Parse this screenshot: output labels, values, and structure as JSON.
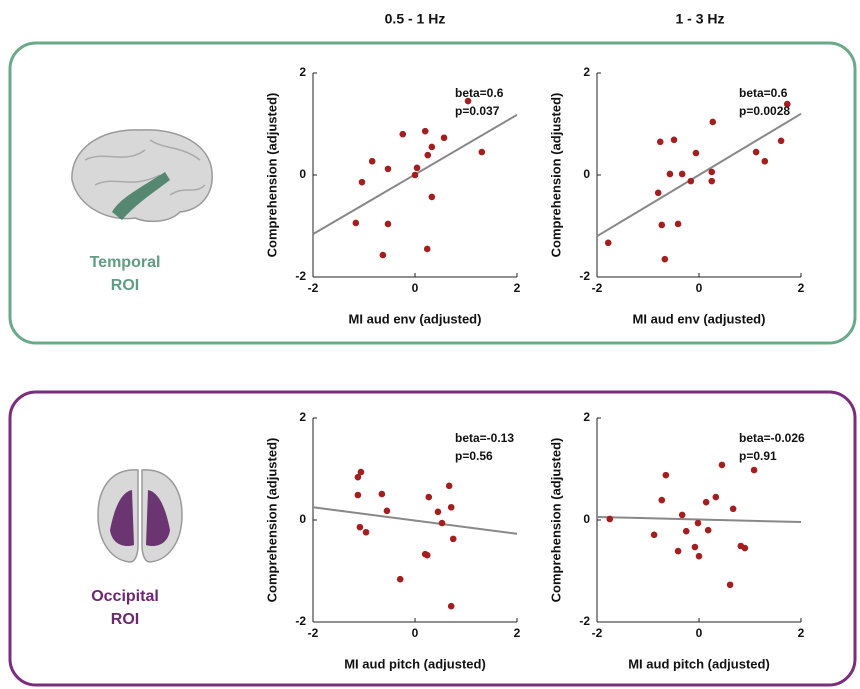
{
  "columns": [
    "0.5 - 1 Hz",
    "1 - 3 Hz"
  ],
  "rows": [
    [
      "Temporal",
      "ROI"
    ],
    [
      "Occipital",
      "ROI"
    ]
  ],
  "chart_data": [
    {
      "type": "scatter",
      "xlabel": "MI aud env (adjusted)",
      "ylabel": "Comprehension (adjusted)",
      "x": [
        -1.16,
        -1.04,
        -0.84,
        -0.63,
        -0.53,
        -0.53,
        -0.24,
        0,
        0.04,
        0.2,
        0.24,
        0.25,
        0.33,
        0.33,
        0.57,
        1.04,
        1.31
      ],
      "values": [
        -0.94,
        -0.14,
        0.27,
        -1.57,
        -0.96,
        0.12,
        0.8,
        0,
        0.14,
        0.86,
        -1.45,
        0.39,
        0.55,
        -0.43,
        0.73,
        1.45,
        0.45
      ],
      "color": "#a31f1f",
      "fit": {
        "x": [
          -2,
          2
        ],
        "y": [
          -1.16,
          1.18
        ],
        "color": "#888888"
      },
      "annotations": [
        "beta=0.6",
        "p=0.037"
      ],
      "xlim": [
        -2,
        2
      ],
      "ylim": [
        -2,
        2
      ],
      "xticks": [
        -2,
        0,
        2
      ],
      "yticks": [
        -2,
        0,
        2
      ]
    },
    {
      "type": "scatter",
      "xlabel": "MI aud env (adjusted)",
      "ylabel": "Comprehension (adjusted)",
      "x": [
        -1.78,
        -0.8,
        -0.76,
        -0.73,
        -0.67,
        -0.57,
        -0.49,
        -0.41,
        -0.33,
        -0.16,
        -0.06,
        0.25,
        0.25,
        0.27,
        1.12,
        1.29,
        1.61,
        1.73
      ],
      "values": [
        -1.33,
        -0.35,
        0.65,
        -0.98,
        -1.65,
        0.02,
        0.69,
        -0.96,
        0.02,
        -0.12,
        0.43,
        0.06,
        -0.12,
        1.04,
        0.45,
        0.27,
        0.67,
        1.39
      ],
      "color": "#a31f1f",
      "fit": {
        "x": [
          -2,
          2
        ],
        "y": [
          -1.2,
          1.2
        ],
        "color": "#888888"
      },
      "annotations": [
        "beta=0.6",
        "p=0.0028"
      ],
      "xlim": [
        -2,
        2
      ],
      "ylim": [
        -2,
        2
      ],
      "xticks": [
        -2,
        0,
        2
      ],
      "yticks": [
        -2,
        0,
        2
      ]
    },
    {
      "type": "scatter",
      "xlabel": "MI aud pitch (adjusted)",
      "ylabel": "Comprehension (adjusted)",
      "x": [
        -1.12,
        -1.06,
        -1.12,
        -1.08,
        -0.96,
        -0.65,
        -0.55,
        -0.29,
        0.24,
        0.2,
        0.27,
        0.45,
        0.53,
        0.71,
        0.67,
        0.75,
        0.71
      ],
      "values": [
        0.84,
        0.94,
        0.49,
        -0.14,
        -0.24,
        0.51,
        0.18,
        -1.16,
        -0.69,
        -0.67,
        0.45,
        0.16,
        -0.06,
        0.25,
        0.67,
        -0.37,
        -1.69
      ],
      "color": "#a31f1f",
      "fit": {
        "x": [
          -2,
          2
        ],
        "y": [
          0.25,
          -0.27
        ],
        "color": "#888888"
      },
      "annotations": [
        "beta=-0.13",
        "p=0.56"
      ],
      "xlim": [
        -2,
        2
      ],
      "ylim": [
        -2,
        2
      ],
      "xticks": [
        -2,
        0,
        2
      ],
      "yticks": [
        -2,
        0,
        2
      ]
    },
    {
      "type": "scatter",
      "xlabel": "MI aud pitch (adjusted)",
      "ylabel": "Comprehension (adjusted)",
      "x": [
        -1.75,
        -0.88,
        -0.73,
        -0.65,
        -0.41,
        -0.33,
        -0.25,
        -0.08,
        -0.02,
        0,
        0.14,
        0.18,
        0.33,
        0.45,
        0.61,
        0.67,
        0.82,
        0.9,
        1.08
      ],
      "values": [
        0.02,
        -0.29,
        0.39,
        0.88,
        -0.61,
        0.1,
        -0.22,
        -0.53,
        -0.06,
        -0.71,
        0.35,
        -0.2,
        0.45,
        1.08,
        -1.27,
        0.22,
        -0.51,
        -0.55,
        0.98
      ],
      "color": "#a31f1f",
      "fit": {
        "x": [
          -2,
          2
        ],
        "y": [
          0.06,
          -0.04
        ],
        "color": "#888888"
      },
      "annotations": [
        "beta=-0.026",
        "p=0.91"
      ],
      "xlim": [
        -2,
        2
      ],
      "ylim": [
        -2,
        2
      ],
      "xticks": [
        -2,
        0,
        2
      ],
      "yticks": [
        -2,
        0,
        2
      ]
    }
  ]
}
